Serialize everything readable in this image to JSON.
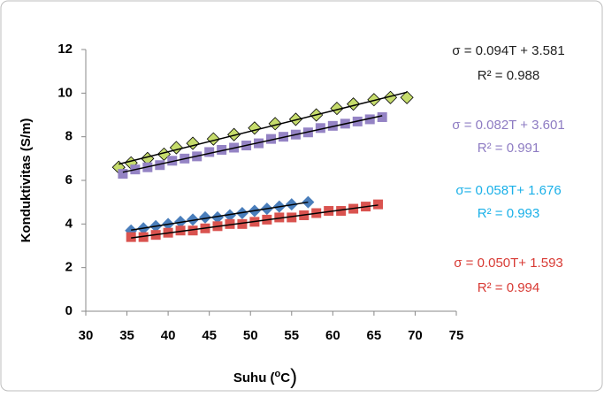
{
  "chart_data": {
    "type": "scatter",
    "y_label": "Konduktivitas (S/m)",
    "x_label": {
      "text": "Suhu (",
      "sup": "o",
      "unit": "C",
      "close": ")"
    },
    "xlim": [
      30,
      75
    ],
    "xticks": [
      30,
      35,
      40,
      45,
      50,
      55,
      60,
      65,
      70,
      75
    ],
    "ylim": [
      0,
      12
    ],
    "yticks": [
      0,
      2,
      4,
      6,
      8,
      10,
      12
    ],
    "trendline": true,
    "series": [
      {
        "marker": "diamond",
        "color": "#c6dc6c",
        "text_color": "#222222",
        "equation": "σ = 0.094T + 3.581",
        "r2": "R² = 0.988",
        "x": [
          34,
          35.5,
          37.5,
          39.5,
          41,
          43,
          45.5,
          48,
          50.5,
          53,
          55.5,
          58,
          60.5,
          62.5,
          65,
          67,
          69
        ],
        "values": [
          6.6,
          6.8,
          7.0,
          7.2,
          7.5,
          7.7,
          7.9,
          8.1,
          8.4,
          8.6,
          8.8,
          9.0,
          9.3,
          9.5,
          9.7,
          9.8,
          9.8
        ]
      },
      {
        "marker": "square",
        "color": "#9483c4",
        "text_color": "#8e7cc3",
        "equation": "σ = 0.082T + 3.601",
        "r2": "R² = 0.991",
        "x": [
          34.5,
          36,
          37.5,
          39,
          40.5,
          42,
          43.5,
          45,
          46.5,
          48,
          49.5,
          51,
          52.5,
          54,
          55.5,
          57,
          58.5,
          60,
          61.5,
          63,
          64.5,
          66
        ],
        "values": [
          6.3,
          6.5,
          6.6,
          6.7,
          6.9,
          7.0,
          7.1,
          7.3,
          7.4,
          7.5,
          7.6,
          7.7,
          7.9,
          8.0,
          8.1,
          8.2,
          8.4,
          8.5,
          8.6,
          8.7,
          8.8,
          8.9
        ]
      },
      {
        "marker": "diamond",
        "color": "#4a7ebb",
        "text_color": "#1ab0e8",
        "equation": "σ= 0.058T+ 1.676",
        "r2": "R² = 0.993",
        "x": [
          35.5,
          37,
          38.5,
          40,
          41.5,
          43,
          44.5,
          46,
          47.5,
          49,
          50.5,
          52,
          53.5,
          55,
          57
        ],
        "values": [
          3.7,
          3.8,
          3.9,
          4.0,
          4.1,
          4.2,
          4.3,
          4.3,
          4.4,
          4.5,
          4.6,
          4.7,
          4.8,
          4.9,
          5.0
        ]
      },
      {
        "marker": "square",
        "color": "#d9534f",
        "text_color": "#d83a34",
        "equation": "σ = 0.050T+ 1.593",
        "r2": "R² = 0.994",
        "x": [
          35.5,
          37,
          38.5,
          40,
          41.5,
          43,
          44.5,
          46,
          47.5,
          49,
          50.5,
          52,
          53.5,
          55,
          56.5,
          58,
          59.5,
          61,
          62.5,
          64,
          65.5
        ],
        "values": [
          3.4,
          3.4,
          3.5,
          3.6,
          3.7,
          3.7,
          3.8,
          3.9,
          4.0,
          4.0,
          4.1,
          4.2,
          4.3,
          4.3,
          4.4,
          4.5,
          4.6,
          4.6,
          4.7,
          4.8,
          4.9
        ]
      }
    ]
  }
}
